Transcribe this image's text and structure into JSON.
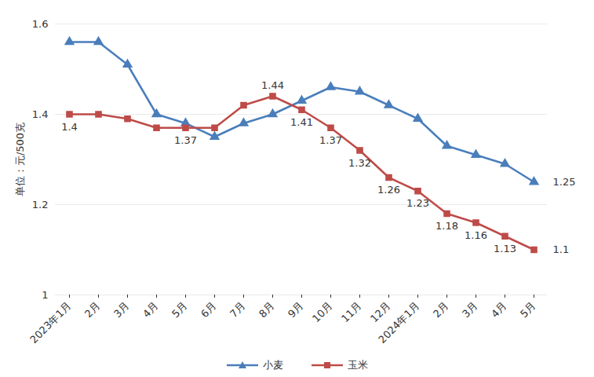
{
  "chart_data": {
    "type": "line",
    "categories": [
      "2023年1月",
      "2月",
      "3月",
      "4月",
      "5月",
      "6月",
      "7月",
      "8月",
      "9月",
      "10月",
      "11月",
      "12月",
      "2024年1月",
      "2月",
      "3月",
      "4月",
      "5月"
    ],
    "series": [
      {
        "name": "小麦",
        "color": "#4a7ebb",
        "marker": "triangle",
        "values": [
          1.56,
          1.56,
          1.51,
          1.4,
          1.38,
          1.35,
          1.38,
          1.4,
          1.43,
          1.46,
          1.45,
          1.42,
          1.39,
          1.33,
          1.31,
          1.29,
          1.25
        ],
        "value_labels": [
          null,
          null,
          null,
          null,
          null,
          null,
          null,
          null,
          null,
          null,
          null,
          null,
          null,
          null,
          null,
          null,
          "1.25"
        ]
      },
      {
        "name": "玉米",
        "color": "#be4b48",
        "marker": "square",
        "values": [
          1.4,
          1.4,
          1.39,
          1.37,
          1.37,
          1.37,
          1.42,
          1.44,
          1.41,
          1.37,
          1.32,
          1.26,
          1.23,
          1.18,
          1.16,
          1.13,
          1.1
        ],
        "value_labels": [
          "1.4",
          null,
          null,
          null,
          "1.37",
          null,
          null,
          "1.44",
          "1.41",
          "1.37",
          "1.32",
          "1.26",
          "1.23",
          "1.18",
          "1.16",
          "1.13",
          "1.1"
        ]
      }
    ],
    "y_label": "单位：元/500克",
    "ylim": [
      1,
      1.6
    ],
    "yticks": [
      1,
      1.2,
      1.4,
      1.6
    ],
    "grid": true,
    "legend": "bottom",
    "data_labels": true
  }
}
